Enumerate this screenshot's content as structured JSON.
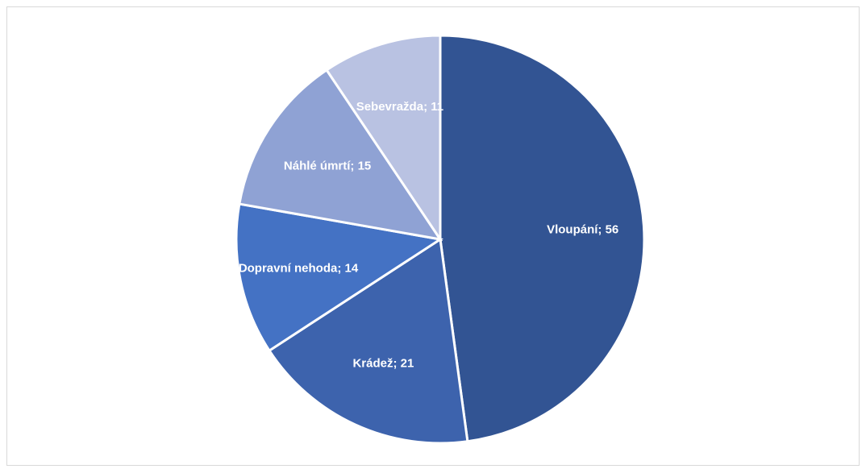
{
  "chart_data": {
    "type": "pie",
    "categories": [
      "Vloupání",
      "Krádež",
      "Dopravní nehoda",
      "Náhlé úmrtí",
      "Sebevražda"
    ],
    "values": [
      56,
      21,
      14,
      15,
      11
    ],
    "labels": [
      "Vloupání; 56",
      "Krádež; 21",
      "Dopravní nehoda; 14",
      "Náhlé úmrtí; 15",
      "Sebevražda; 11"
    ],
    "colors": [
      "#325493",
      "#3d63ad",
      "#4472c4",
      "#8fa2d4",
      "#b9c2e2"
    ],
    "start_angle_deg": 0,
    "direction": "clockwise",
    "legend": "none"
  }
}
